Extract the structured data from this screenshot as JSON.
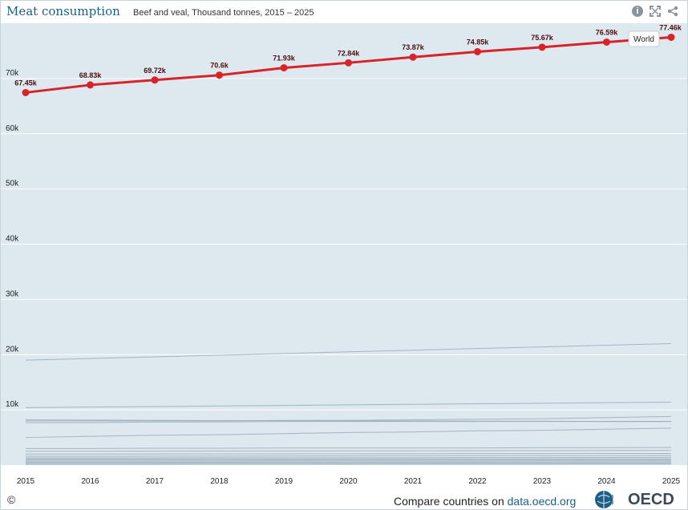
{
  "header": {
    "title": "Meat consumption",
    "subtitle": "Beef and veal, Thousand tonnes, 2015 – 2025",
    "info_icon": "info-icon",
    "expand_icon": "fullscreen-icon",
    "share_icon": "share-icon"
  },
  "footer": {
    "copyright": "©",
    "compare_text": "Compare countries on",
    "compare_link": "data.oecd.org",
    "logo_text": "OECD"
  },
  "colors": {
    "highlight": "#d8232a",
    "background_lines": "#9aabb8",
    "plot_bg": "#dde8ef",
    "title": "#1b5e86"
  },
  "chart_data": {
    "type": "line",
    "title": "Meat consumption",
    "subtitle": "Beef and veal, Thousand tonnes, 2015 – 2025",
    "xlabel": "",
    "ylabel": "",
    "x": [
      "2015",
      "2016",
      "2017",
      "2018",
      "2019",
      "2020",
      "2021",
      "2022",
      "2023",
      "2024",
      "2025"
    ],
    "ylim": [
      0,
      80000
    ],
    "yticks": [
      10000,
      20000,
      30000,
      40000,
      50000,
      60000,
      70000
    ],
    "ytick_labels": [
      "10k",
      "20k",
      "30k",
      "40k",
      "50k",
      "60k",
      "70k"
    ],
    "grid": true,
    "highlight_series": {
      "name": "World",
      "values": [
        67450,
        68830,
        69720,
        70600,
        71930,
        72840,
        73870,
        74850,
        75670,
        76590,
        77460
      ],
      "labels": [
        "67.45k",
        "68.83k",
        "69.72k",
        "70.6k",
        "71.93k",
        "72.84k",
        "73.87k",
        "74.85k",
        "75.67k",
        "76.59k",
        "77.46k"
      ]
    },
    "background_series": [
      {
        "values": [
          19000,
          19300,
          19600,
          19900,
          20200,
          20500,
          20800,
          21100,
          21400,
          21700,
          22000
        ]
      },
      {
        "values": [
          10400,
          10500,
          10600,
          10700,
          10800,
          10900,
          11000,
          11100,
          11200,
          11300,
          11400
        ]
      },
      {
        "values": [
          8000,
          8000,
          8000,
          8000,
          8100,
          8100,
          8200,
          8300,
          8400,
          8600,
          8800
        ]
      },
      {
        "values": [
          8200,
          8150,
          8100,
          8050,
          8050,
          8000,
          8000,
          7950,
          7950,
          7900,
          7900
        ]
      },
      {
        "values": [
          7700,
          7700,
          7800,
          7800,
          7900,
          7900,
          7900,
          7900,
          7900,
          7900,
          7900
        ]
      },
      {
        "values": [
          5000,
          5200,
          5400,
          5500,
          5700,
          5900,
          6000,
          6200,
          6300,
          6500,
          6700
        ]
      },
      {
        "values": [
          3000,
          3000,
          3050,
          3050,
          3100,
          3100,
          3100,
          3100,
          3150,
          3150,
          3200
        ]
      },
      {
        "values": [
          2500,
          2500,
          2520,
          2550,
          2560,
          2570,
          2580,
          2600,
          2620,
          2640,
          2660
        ]
      },
      {
        "values": [
          2000,
          2000,
          2020,
          2030,
          2040,
          2050,
          2070,
          2080,
          2090,
          2100,
          2110
        ]
      },
      {
        "values": [
          1600,
          1600,
          1620,
          1640,
          1650,
          1670,
          1680,
          1700,
          1710,
          1720,
          1740
        ]
      },
      {
        "values": [
          1300,
          1300,
          1310,
          1320,
          1330,
          1340,
          1350,
          1360,
          1370,
          1380,
          1390
        ]
      },
      {
        "values": [
          1100,
          1100,
          1100,
          1110,
          1110,
          1120,
          1120,
          1130,
          1130,
          1140,
          1140
        ]
      },
      {
        "values": [
          900,
          900,
          900,
          910,
          910,
          920,
          920,
          930,
          930,
          940,
          940
        ]
      },
      {
        "values": [
          700,
          700,
          710,
          710,
          720,
          720,
          730,
          730,
          740,
          740,
          750
        ]
      },
      {
        "values": [
          500,
          500,
          500,
          510,
          510,
          520,
          520,
          530,
          530,
          540,
          540
        ]
      },
      {
        "values": [
          300,
          300,
          300,
          310,
          310,
          310,
          320,
          320,
          320,
          330,
          330
        ]
      },
      {
        "values": [
          150,
          150,
          150,
          160,
          160,
          160,
          170,
          170,
          170,
          180,
          180
        ]
      }
    ]
  }
}
